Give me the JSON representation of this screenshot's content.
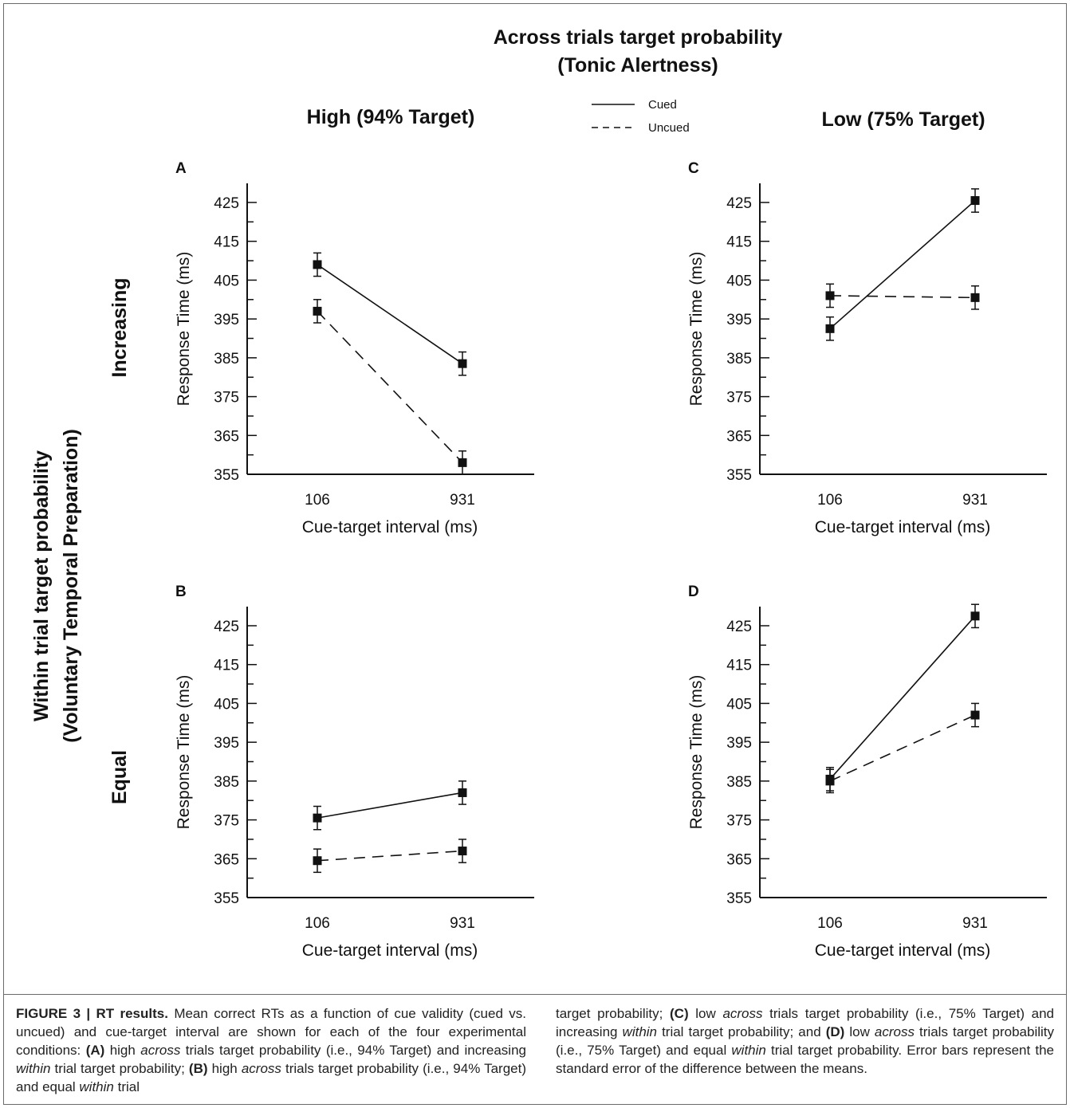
{
  "figure": {
    "top_title": [
      "Across trials target probability",
      "(Tonic Alertness)"
    ],
    "col_titles": [
      "High (94% Target)",
      "Low (75% Target)"
    ],
    "row_axis_title": [
      "Within trial target probability",
      "(Voluntary Temporal Preparation)"
    ],
    "row_titles": [
      "Increasing",
      "Equal"
    ],
    "legend": {
      "placement": "top-center",
      "items": [
        {
          "label": "Cued",
          "style": "solid"
        },
        {
          "label": "Uncued",
          "style": "dashed"
        }
      ]
    }
  },
  "chart_data": [
    {
      "type": "line",
      "panel_label": "A",
      "xlabel": "Cue-target interval (ms)",
      "ylabel": "Response Time (ms)",
      "categories": [
        "106",
        "931"
      ],
      "ylim": [
        355,
        430
      ],
      "yticks": [
        355,
        365,
        375,
        385,
        395,
        405,
        415,
        425
      ],
      "series": [
        {
          "name": "Cued",
          "style": "solid",
          "values": [
            409,
            383.5
          ],
          "error": [
            3,
            3
          ]
        },
        {
          "name": "Uncued",
          "style": "dashed",
          "values": [
            397,
            358
          ],
          "error": [
            3,
            3
          ]
        }
      ]
    },
    {
      "type": "line",
      "panel_label": "C",
      "xlabel": "Cue-target interval (ms)",
      "ylabel": "Response Time (ms)",
      "categories": [
        "106",
        "931"
      ],
      "ylim": [
        355,
        430
      ],
      "yticks": [
        355,
        365,
        375,
        385,
        395,
        405,
        415,
        425
      ],
      "series": [
        {
          "name": "Cued",
          "style": "solid",
          "values": [
            392.5,
            425.5
          ],
          "error": [
            3,
            3
          ]
        },
        {
          "name": "Uncued",
          "style": "dashed",
          "values": [
            401,
            400.5
          ],
          "error": [
            3,
            3
          ]
        }
      ]
    },
    {
      "type": "line",
      "panel_label": "B",
      "xlabel": "Cue-target interval (ms)",
      "ylabel": "Response Time (ms)",
      "categories": [
        "106",
        "931"
      ],
      "ylim": [
        355,
        430
      ],
      "yticks": [
        355,
        365,
        375,
        385,
        395,
        405,
        415,
        425
      ],
      "series": [
        {
          "name": "Cued",
          "style": "solid",
          "values": [
            375.5,
            382
          ],
          "error": [
            3,
            3
          ]
        },
        {
          "name": "Uncued",
          "style": "dashed",
          "values": [
            364.5,
            367
          ],
          "error": [
            3,
            3
          ]
        }
      ]
    },
    {
      "type": "line",
      "panel_label": "D",
      "xlabel": "Cue-target interval (ms)",
      "ylabel": "Response Time (ms)",
      "categories": [
        "106",
        "931"
      ],
      "ylim": [
        355,
        430
      ],
      "yticks": [
        355,
        365,
        375,
        385,
        395,
        405,
        415,
        425
      ],
      "series": [
        {
          "name": "Cued",
          "style": "solid",
          "values": [
            385.5,
            427.5
          ],
          "error": [
            3,
            3
          ]
        },
        {
          "name": "Uncued",
          "style": "dashed",
          "values": [
            385,
            402
          ],
          "error": [
            3,
            3
          ]
        }
      ]
    }
  ],
  "caption": {
    "left": [
      {
        "t": "FIGURE 3 | RT results.",
        "b": true
      },
      {
        "t": " Mean correct RTs as a function of cue validity (cued vs. uncued) and cue-target interval are shown for each of the four experimental conditions: "
      },
      {
        "t": "(A)",
        "b": true
      },
      {
        "t": " high "
      },
      {
        "t": "across",
        "i": true
      },
      {
        "t": " trials target probability (i.e., 94% Target) and increasing "
      },
      {
        "t": "within",
        "i": true
      },
      {
        "t": " trial target probability; "
      },
      {
        "t": "(B)",
        "b": true
      },
      {
        "t": " high "
      },
      {
        "t": "across",
        "i": true
      },
      {
        "t": " trials target probability (i.e., 94% Target) and equal "
      },
      {
        "t": "within",
        "i": true
      },
      {
        "t": " trial"
      }
    ],
    "right": [
      {
        "t": "target probability; "
      },
      {
        "t": "(C)",
        "b": true
      },
      {
        "t": " low "
      },
      {
        "t": "across",
        "i": true
      },
      {
        "t": " trials target probability (i.e., 75% Target) and increasing "
      },
      {
        "t": "within",
        "i": true
      },
      {
        "t": " trial target probability; and "
      },
      {
        "t": "(D)",
        "b": true
      },
      {
        "t": " low "
      },
      {
        "t": "across",
        "i": true
      },
      {
        "t": " trials target probability (i.e., 75% Target) and equal "
      },
      {
        "t": "within",
        "i": true
      },
      {
        "t": " trial target probability. Error bars represent the standard error of the difference between the means."
      }
    ]
  }
}
